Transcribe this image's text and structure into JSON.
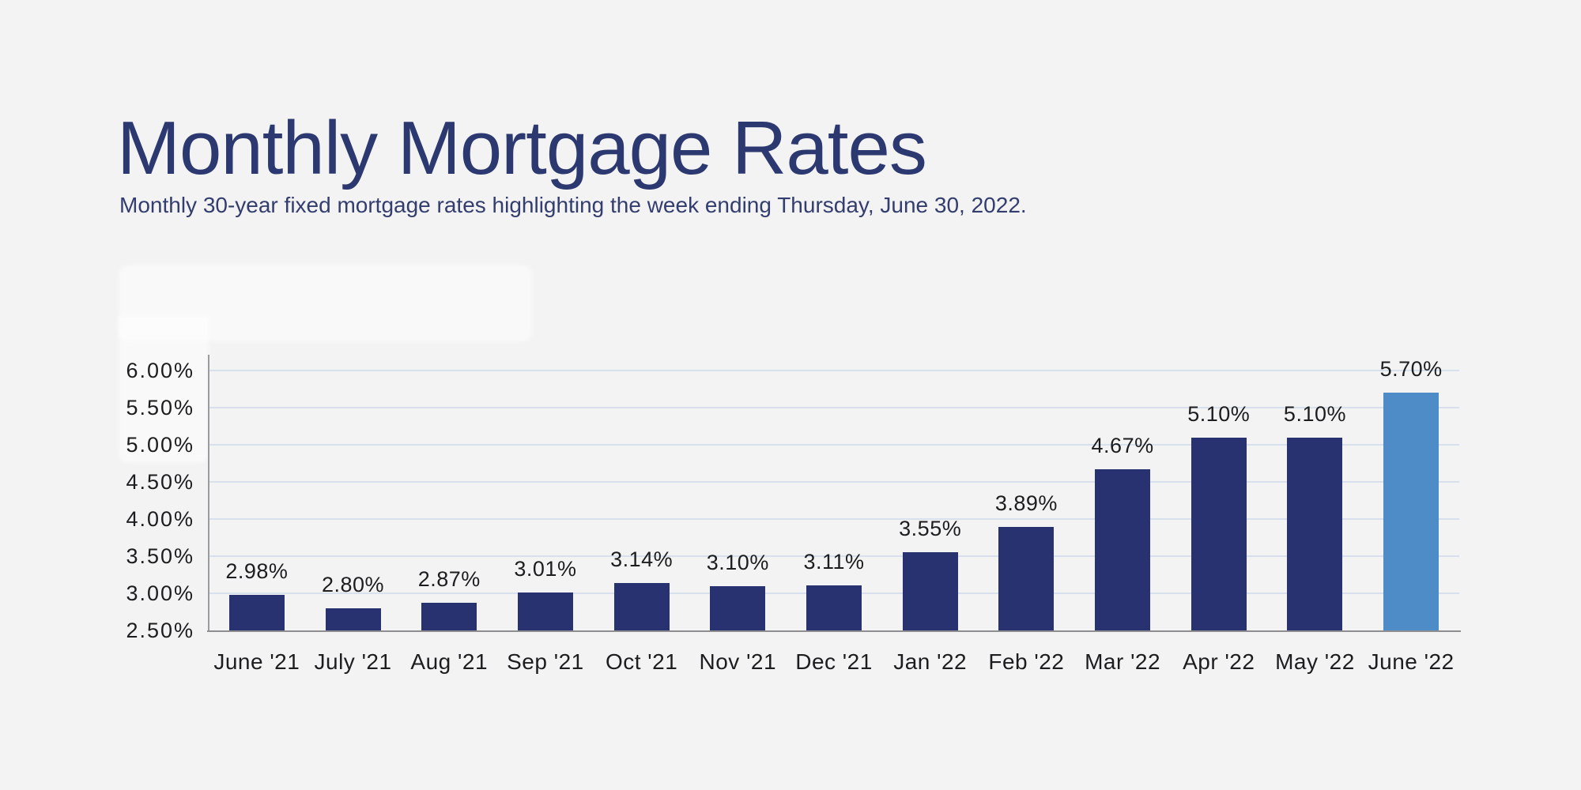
{
  "header": {
    "title": "Monthly Mortgage Rates",
    "subtitle": "Monthly 30-year fixed mortgage rates highlighting the week ending Thursday, June 30, 2022."
  },
  "chart_data": {
    "type": "bar",
    "title": "Monthly Mortgage Rates",
    "subtitle": "Monthly 30-year fixed mortgage rates highlighting the week ending Thursday, June 30, 2022.",
    "categories": [
      "June '21",
      "July '21",
      "Aug '21",
      "Sep '21",
      "Oct '21",
      "Nov '21",
      "Dec '21",
      "Jan '22",
      "Feb '22",
      "Mar '22",
      "Apr '22",
      "May '22",
      "June '22"
    ],
    "values": [
      2.98,
      2.8,
      2.87,
      3.01,
      3.14,
      3.1,
      3.11,
      3.55,
      3.89,
      4.67,
      5.1,
      5.1,
      5.7
    ],
    "value_labels": [
      "2.98%",
      "2.80%",
      "2.87%",
      "3.01%",
      "3.14%",
      "3.10%",
      "3.11%",
      "3.55%",
      "3.89%",
      "4.67%",
      "5.10%",
      "5.10%",
      "5.70%"
    ],
    "highlight_index": 12,
    "highlight_category": "June '22",
    "xlabel": "",
    "ylabel": "",
    "ylim": [
      2.5,
      6.0
    ],
    "ytick_step": 0.5,
    "ytick_labels": [
      "2.50%",
      "3.00%",
      "3.50%",
      "4.00%",
      "4.50%",
      "5.00%",
      "5.50%",
      "6.00%"
    ],
    "grid": true,
    "legend": false,
    "colors": {
      "bar": "#293271",
      "bar_highlight": "#4e8cc7",
      "title_text": "#2c3970",
      "subtitle_text": "#333d6e",
      "tick_text": "#1d1d1f",
      "gridline": "#d8dfed",
      "axis_line": "#8e8e91",
      "background": "#f3f3f4"
    }
  }
}
